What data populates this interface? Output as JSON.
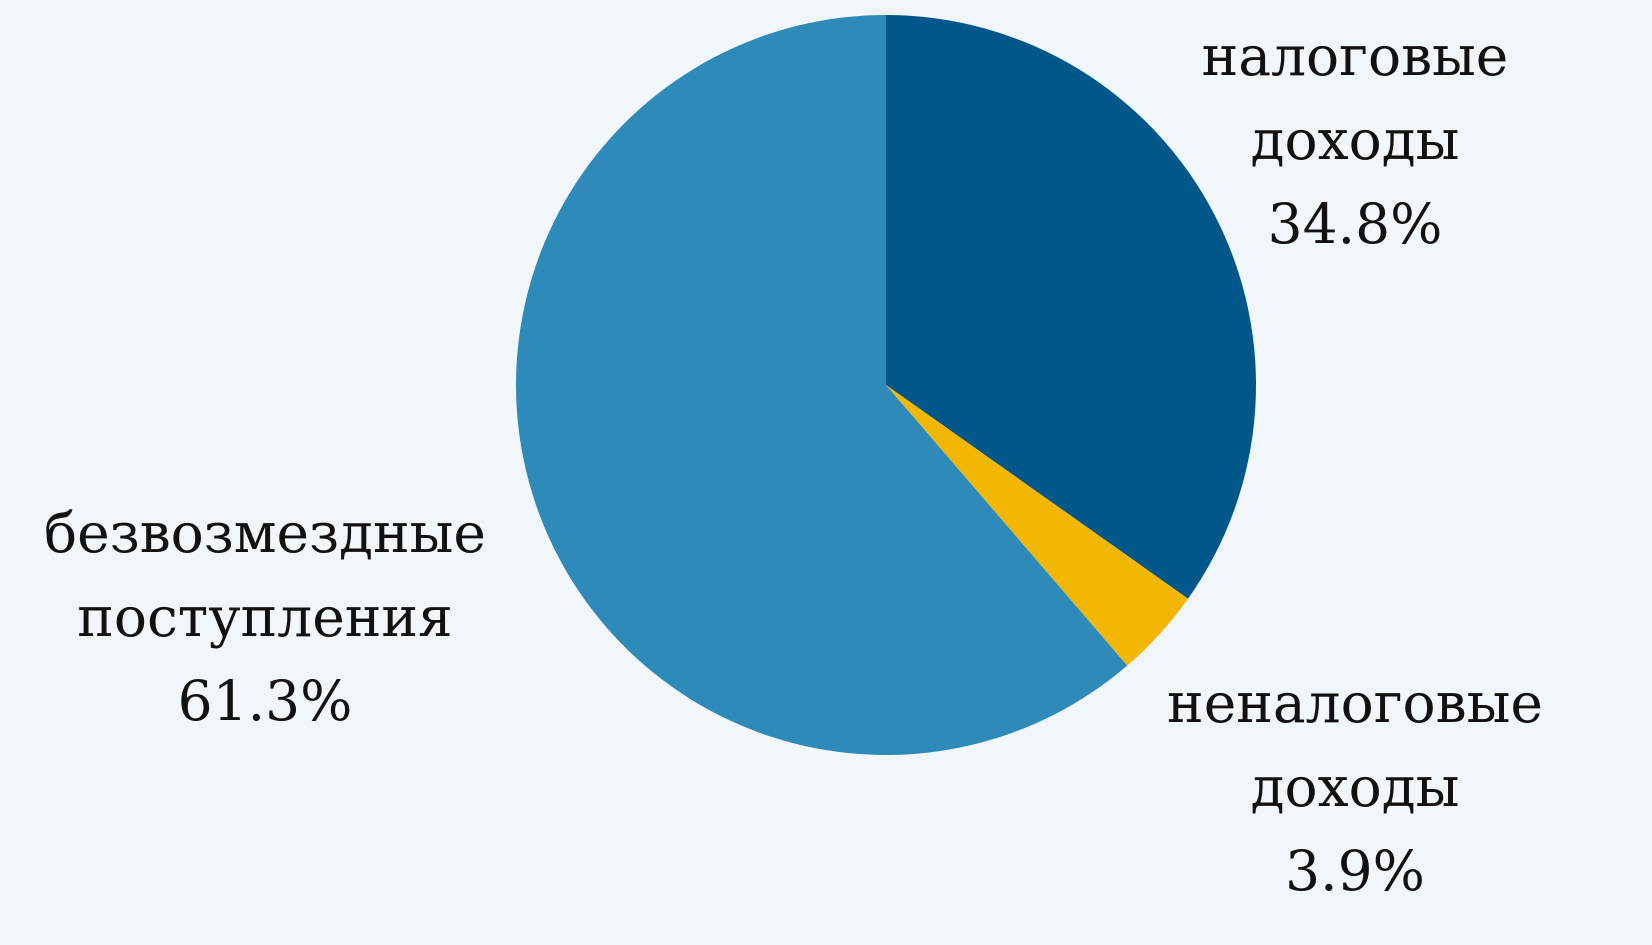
{
  "chart_data": {
    "type": "pie",
    "start_angle_deg": 0,
    "direction": "clockwise",
    "slices": [
      {
        "label_lines": [
          "налоговые",
          "доходы"
        ],
        "value": 34.8,
        "value_label": "34.8%",
        "color": "#02578a"
      },
      {
        "label_lines": [
          "неналоговые",
          "доходы"
        ],
        "value": 3.9,
        "value_label": "3.9%",
        "color": "#f2b705"
      },
      {
        "label_lines": [
          "безвозмездные",
          "поступления"
        ],
        "value": 61.3,
        "value_label": "61.3%",
        "color": "#2e8bb9"
      }
    ],
    "background": "#f0f6fa"
  }
}
